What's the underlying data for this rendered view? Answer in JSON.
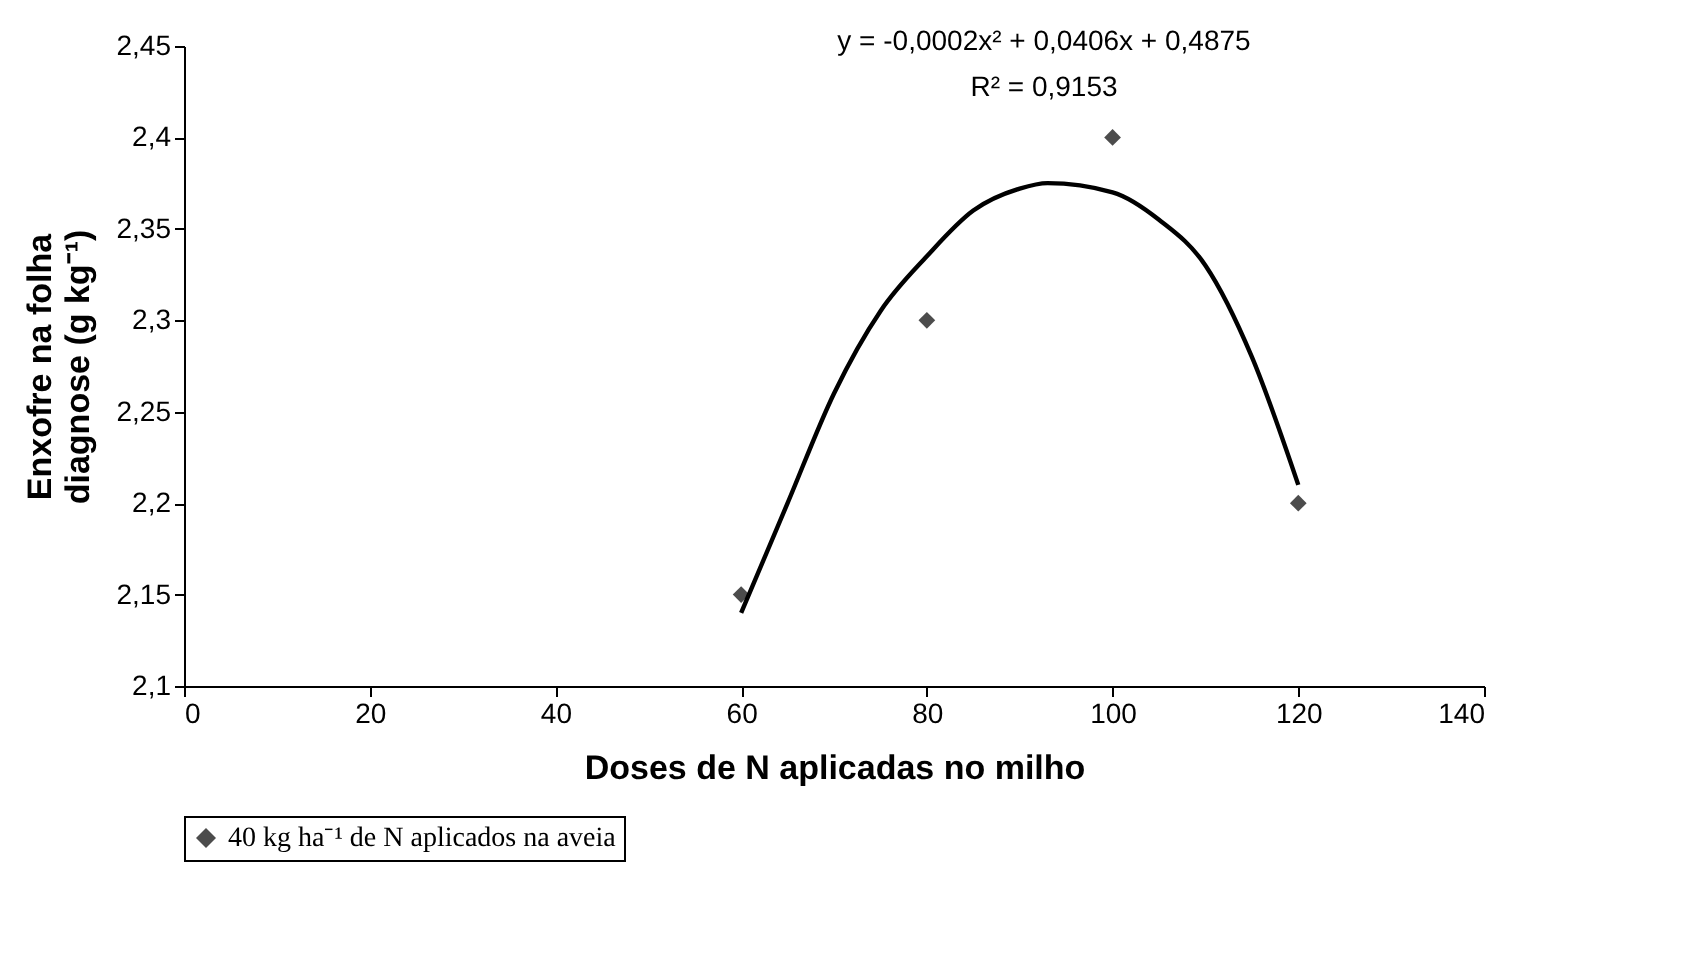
{
  "chart_data": {
    "type": "scatter",
    "xlabel": "Doses de N aplicadas no milho",
    "ylabel": "Enxofre na folha diagnose (g kg⁻¹)",
    "annotations": [
      "y = -0,0002x² + 0,0406x + 0,4875",
      "R² = 0,9153"
    ],
    "series": [
      {
        "name": "40 kg ha⁻¹ de N aplicados na aveia",
        "color": "#000000",
        "marker": "diamond",
        "x": [
          60,
          80,
          100,
          120
        ],
        "values": [
          2.15,
          2.3,
          2.4,
          2.2
        ]
      },
      {
        "type": "line",
        "line_style": "solid",
        "color": "#000000",
        "x": [
          60,
          65,
          70,
          75,
          80,
          85,
          90,
          93,
          100,
          105,
          110,
          115,
          120
        ],
        "values": [
          2.14,
          2.2,
          2.26,
          2.305,
          2.335,
          2.36,
          2.372,
          2.375,
          2.37,
          2.355,
          2.33,
          2.28,
          2.21
        ]
      }
    ],
    "xlim": [
      0,
      140
    ],
    "xticks": [
      0,
      20,
      40,
      60,
      80,
      100,
      120,
      140
    ],
    "ylim": [
      2.1,
      2.45
    ],
    "yticks": [
      {
        "value": 2.1,
        "label": "2,1"
      },
      {
        "value": 2.15,
        "label": "2,15"
      },
      {
        "value": 2.2,
        "label": "2,2"
      },
      {
        "value": 2.25,
        "label": "2,25"
      },
      {
        "value": 2.3,
        "label": "2,3"
      },
      {
        "value": 2.35,
        "label": "2,35"
      },
      {
        "value": 2.4,
        "label": "2,4"
      },
      {
        "value": 2.45,
        "label": "2,45"
      }
    ],
    "grid": false,
    "legend": "bottom"
  }
}
